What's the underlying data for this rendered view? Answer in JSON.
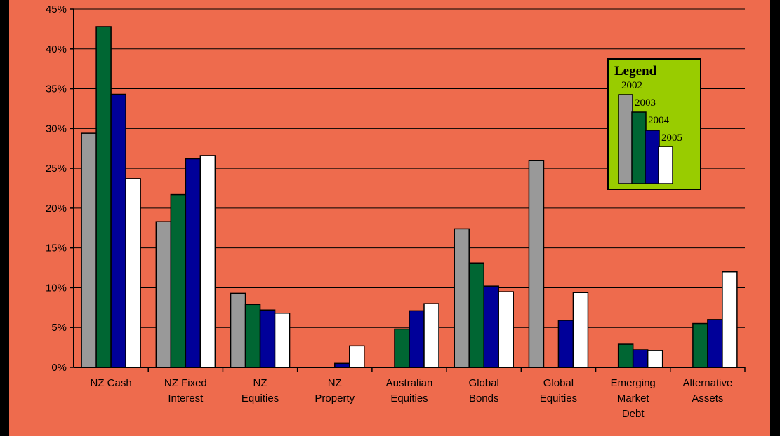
{
  "chart_data": {
    "type": "bar",
    "categories": [
      [
        "NZ Cash"
      ],
      [
        "NZ Fixed",
        "Interest"
      ],
      [
        "NZ",
        "Equities"
      ],
      [
        "NZ",
        "Property"
      ],
      [
        "Australian",
        "Equities"
      ],
      [
        "Global",
        "Bonds"
      ],
      [
        "Global",
        "Equities"
      ],
      [
        "Emerging",
        "Market",
        "Debt"
      ],
      [
        "Alternative",
        "Assets"
      ]
    ],
    "series": [
      {
        "name": "2002",
        "color": "#999999",
        "values": [
          29.4,
          18.3,
          9.3,
          0,
          0,
          17.4,
          26.0,
          0,
          0
        ]
      },
      {
        "name": "2003",
        "color": "#006633",
        "values": [
          42.8,
          21.7,
          7.9,
          0,
          4.8,
          13.1,
          0,
          2.9,
          5.5
        ]
      },
      {
        "name": "2004",
        "color": "#000099",
        "values": [
          34.3,
          26.2,
          7.2,
          0.5,
          7.1,
          10.2,
          5.9,
          2.2,
          6.0
        ]
      },
      {
        "name": "2005",
        "color": "#FFFFFF",
        "values": [
          23.7,
          26.6,
          6.8,
          2.7,
          8.0,
          9.5,
          9.4,
          2.1,
          12.0
        ]
      }
    ],
    "y_ticks": [
      "0%",
      "5%",
      "10%",
      "15%",
      "20%",
      "25%",
      "30%",
      "35%",
      "40%",
      "45%"
    ],
    "ylim": [
      0,
      45
    ],
    "grid": true,
    "legend": {
      "title": "Legend",
      "background": "#99CC00",
      "placement": "top-right"
    }
  }
}
